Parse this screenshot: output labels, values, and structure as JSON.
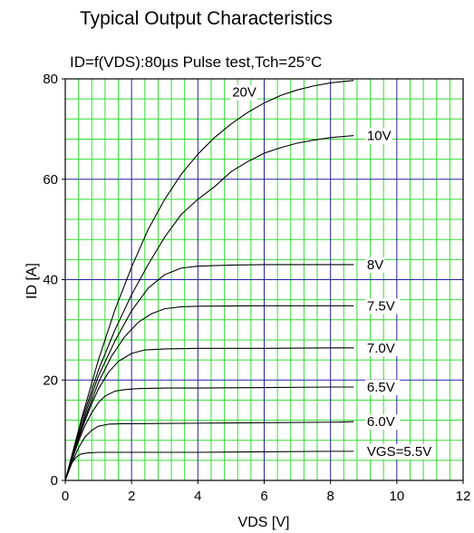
{
  "chart_data": {
    "type": "line",
    "title": "Typical Output Characteristics",
    "subtitle": "ID=f(VDS):80µs Pulse test,Tch=25°C",
    "xlabel": "VDS [V]",
    "ylabel": "ID [A]",
    "xlim": [
      0,
      12
    ],
    "ylim": [
      0,
      80
    ],
    "x_ticks": [
      "0",
      "2",
      "4",
      "6",
      "8",
      "10",
      "12"
    ],
    "y_ticks": [
      "0",
      "20",
      "40",
      "60",
      "80"
    ],
    "grid": true,
    "grid_colors": {
      "minor": "#33dd33",
      "major": "#2222aa",
      "curve": "#000000"
    },
    "series": [
      {
        "name": "VGS=5.5V",
        "x": [
          0,
          0.1,
          0.2,
          0.3,
          0.4,
          0.5,
          0.7,
          1.0,
          1.5,
          2,
          4,
          6,
          8,
          8.7
        ],
        "y": [
          0,
          2.0,
          3.5,
          4.4,
          5.0,
          5.3,
          5.5,
          5.6,
          5.6,
          5.6,
          5.6,
          5.7,
          5.8,
          5.8
        ]
      },
      {
        "name": "6.0V",
        "x": [
          0,
          0.2,
          0.4,
          0.6,
          0.8,
          1.0,
          1.3,
          1.7,
          2,
          4,
          6,
          8,
          8.7
        ],
        "y": [
          0,
          3.5,
          6.5,
          8.7,
          10.0,
          10.8,
          11.2,
          11.3,
          11.3,
          11.4,
          11.5,
          11.6,
          11.7
        ]
      },
      {
        "name": "6.5V",
        "x": [
          0,
          0.2,
          0.4,
          0.6,
          0.8,
          1.0,
          1.2,
          1.5,
          1.8,
          2.2,
          3,
          4,
          6,
          8,
          8.7
        ],
        "y": [
          0,
          4.0,
          7.8,
          11.0,
          13.5,
          15.5,
          16.8,
          17.8,
          18.1,
          18.3,
          18.4,
          18.4,
          18.5,
          18.6,
          18.6
        ]
      },
      {
        "name": "7.0V",
        "x": [
          0,
          0.2,
          0.4,
          0.6,
          0.8,
          1.0,
          1.3,
          1.6,
          2.0,
          2.4,
          3,
          4,
          6,
          8,
          8.7
        ],
        "y": [
          0,
          4.2,
          8.2,
          12.0,
          15.3,
          18.2,
          21.5,
          23.7,
          25.3,
          26.0,
          26.2,
          26.3,
          26.3,
          26.4,
          26.4
        ]
      },
      {
        "name": "7.5V",
        "x": [
          0,
          0.3,
          0.6,
          1.0,
          1.4,
          1.8,
          2.2,
          2.6,
          3.0,
          3.5,
          4,
          6,
          8,
          8.7
        ],
        "y": [
          0,
          6.5,
          12.5,
          19.5,
          24.8,
          28.7,
          31.5,
          33.2,
          34.2,
          34.6,
          34.7,
          34.8,
          34.8,
          34.8
        ]
      },
      {
        "name": "8V",
        "x": [
          0,
          0.3,
          0.6,
          1.0,
          1.5,
          2.0,
          2.5,
          3.0,
          3.5,
          4.0,
          5,
          6,
          8,
          8.7
        ],
        "y": [
          0,
          6.8,
          13.2,
          20.8,
          27.8,
          33.8,
          38.3,
          41.0,
          42.3,
          42.7,
          42.9,
          43.0,
          43.0,
          43.0
        ]
      },
      {
        "name": "10V",
        "x": [
          0,
          0.5,
          1.0,
          1.5,
          2.0,
          2.5,
          3.0,
          3.5,
          4.0,
          4.5,
          5,
          5.5,
          6,
          6.5,
          7,
          7.5,
          8,
          8.7
        ],
        "y": [
          0,
          12.0,
          22.0,
          30.0,
          37.0,
          43.0,
          48.5,
          53.0,
          56.0,
          58.5,
          61.5,
          63.5,
          65.2,
          66.3,
          67.2,
          67.8,
          68.3,
          68.7
        ]
      },
      {
        "name": "20V",
        "x": [
          0,
          0.5,
          1.0,
          1.5,
          2.0,
          2.5,
          3.0,
          3.5,
          4.0,
          4.5,
          5,
          5.5,
          6,
          6.5,
          7,
          7.5,
          8,
          8.7
        ],
        "y": [
          0,
          12.5,
          24.0,
          34.0,
          42.5,
          50.0,
          56.0,
          61.0,
          65.0,
          68.3,
          71.0,
          73.3,
          75.2,
          76.7,
          77.8,
          78.6,
          79.2,
          79.7
        ]
      }
    ]
  }
}
